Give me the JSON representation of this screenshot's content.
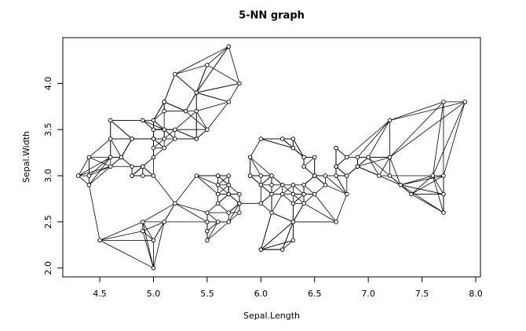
{
  "chart_data": {
    "type": "scatter",
    "title": "5-NN graph",
    "x_label": "Sepal.Length",
    "y_label": "Sepal.Width",
    "x": [
      5.1,
      4.9,
      4.7,
      4.6,
      5.0,
      5.4,
      4.6,
      5.0,
      4.4,
      4.9,
      5.4,
      4.8,
      4.8,
      4.3,
      5.8,
      5.7,
      5.4,
      5.1,
      5.7,
      5.1,
      5.4,
      5.1,
      4.6,
      5.1,
      4.8,
      5.0,
      5.0,
      5.2,
      5.2,
      4.7,
      4.8,
      5.4,
      5.2,
      5.5,
      4.9,
      5.0,
      5.5,
      4.9,
      4.4,
      5.1,
      5.0,
      4.5,
      4.4,
      5.0,
      5.1,
      4.8,
      5.1,
      4.6,
      5.3,
      5.0,
      7.0,
      6.4,
      6.9,
      5.5,
      6.5,
      5.7,
      6.3,
      4.9,
      6.6,
      5.2,
      5.0,
      5.9,
      6.0,
      6.1,
      5.6,
      6.7,
      5.6,
      5.8,
      6.2,
      5.6,
      5.9,
      6.1,
      6.3,
      6.1,
      6.4,
      6.6,
      6.8,
      6.7,
      6.0,
      5.7,
      5.5,
      5.5,
      5.8,
      6.0,
      5.4,
      6.0,
      6.7,
      6.3,
      5.6,
      5.5,
      5.5,
      6.1,
      5.8,
      5.0,
      5.6,
      5.7,
      5.7,
      6.2,
      5.1,
      5.7,
      6.3,
      5.8,
      7.1,
      6.3,
      6.5,
      7.6,
      4.9,
      7.3,
      6.7,
      7.2,
      6.5,
      6.4,
      6.8,
      5.7,
      5.8,
      6.4,
      6.5,
      7.7,
      7.7,
      6.0,
      6.9,
      5.6,
      7.7,
      6.3,
      6.7,
      7.2,
      6.2,
      6.1,
      6.4,
      7.2,
      7.4,
      7.9,
      6.4,
      6.3,
      6.1,
      7.7,
      6.3,
      6.4,
      6.0,
      6.9,
      6.7,
      6.9,
      5.8,
      6.8,
      6.7,
      6.7,
      6.3,
      6.5,
      6.2,
      5.9
    ],
    "y": [
      3.5,
      3.0,
      3.2,
      3.1,
      3.6,
      3.9,
      3.4,
      3.4,
      2.9,
      3.1,
      3.7,
      3.4,
      3.0,
      3.0,
      4.0,
      4.4,
      3.9,
      3.5,
      3.8,
      3.8,
      3.4,
      3.7,
      3.6,
      3.3,
      3.4,
      3.0,
      3.4,
      3.5,
      3.4,
      3.2,
      3.1,
      3.4,
      4.1,
      4.2,
      3.1,
      3.2,
      3.5,
      3.6,
      3.0,
      3.4,
      3.5,
      2.3,
      3.2,
      3.5,
      3.8,
      3.0,
      3.8,
      3.2,
      3.7,
      3.3,
      3.2,
      3.2,
      3.1,
      2.3,
      2.8,
      2.8,
      3.3,
      2.4,
      2.9,
      2.7,
      2.0,
      3.0,
      2.2,
      2.9,
      2.9,
      3.1,
      3.0,
      2.7,
      2.2,
      2.5,
      3.2,
      2.8,
      2.5,
      2.8,
      2.9,
      3.0,
      2.8,
      3.0,
      2.9,
      2.6,
      2.4,
      2.4,
      2.7,
      2.7,
      3.0,
      3.4,
      3.1,
      2.3,
      3.0,
      2.5,
      2.6,
      3.0,
      2.6,
      2.3,
      2.7,
      3.0,
      2.9,
      2.9,
      2.5,
      2.8,
      3.3,
      2.7,
      3.0,
      2.9,
      3.0,
      3.0,
      2.5,
      2.9,
      2.5,
      3.6,
      3.2,
      2.7,
      3.0,
      2.5,
      2.8,
      3.2,
      3.0,
      3.8,
      2.6,
      2.2,
      3.2,
      2.8,
      2.8,
      2.7,
      3.3,
      3.2,
      2.8,
      3.0,
      2.8,
      3.0,
      2.8,
      3.8,
      2.8,
      2.8,
      2.6,
      3.0,
      3.4,
      3.1,
      3.0,
      3.1,
      3.1,
      3.1,
      2.7,
      3.2,
      3.3,
      3.0,
      2.5,
      3.0,
      3.4,
      3.0
    ],
    "xlim": [
      4.156,
      8.044
    ],
    "ylim": [
      1.904,
      4.496
    ],
    "xticks": [
      4.5,
      {
        "value": 5,
        "label": "5.0"
      },
      5.5,
      {
        "value": 6,
        "label": "6.0"
      },
      6.5,
      {
        "value": 7,
        "label": "7.0"
      },
      7.5,
      {
        "value": 8,
        "label": "8.0"
      }
    ],
    "yticks": [
      {
        "value": 2,
        "label": "2.0"
      },
      2.5,
      {
        "value": 3,
        "label": "3.0"
      },
      3.5,
      {
        "value": 4,
        "label": "4.0"
      }
    ],
    "color": "#000000"
  }
}
